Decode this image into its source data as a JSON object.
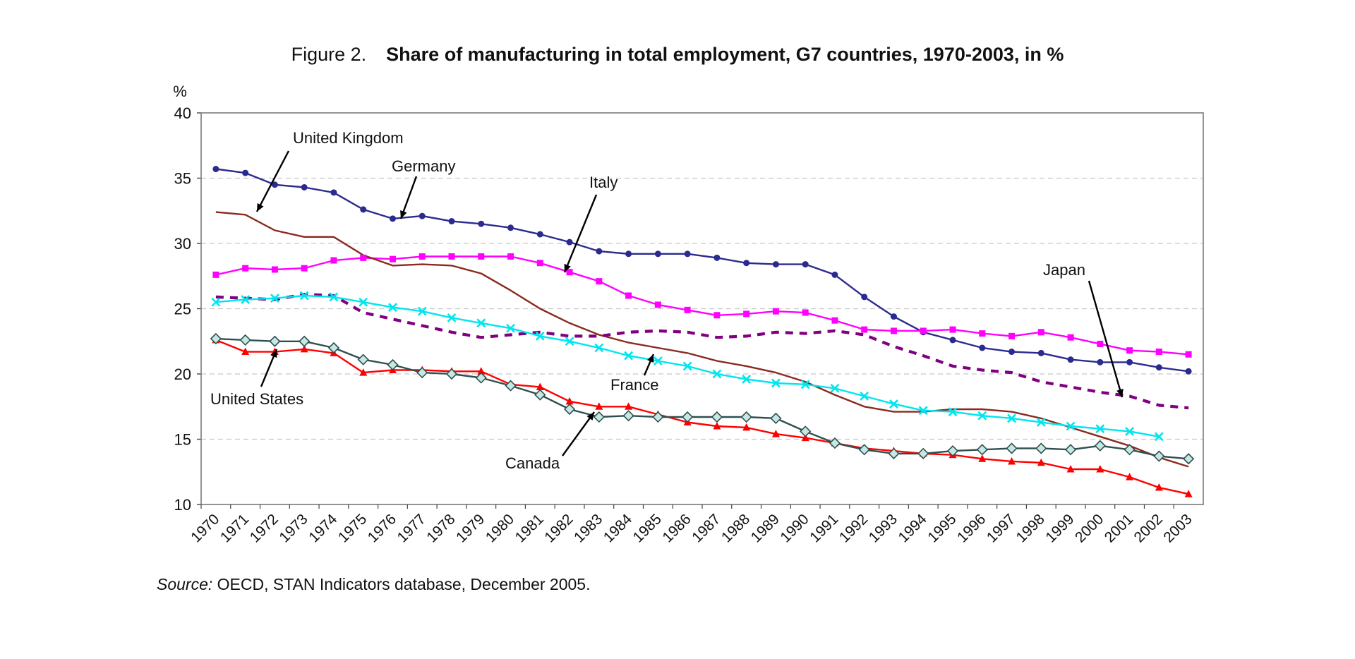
{
  "figure_label": "Figure 2.",
  "source": {
    "lead": "Source:",
    "text": "OECD, STAN Indicators database, December 2005."
  },
  "chart_data": {
    "type": "line",
    "title": "Share of manufacturing in total employment, G7 countries, 1970-2003, in %",
    "ylabel": "%",
    "xlabel": "",
    "ylim": [
      10,
      40
    ],
    "yticks": [
      10,
      15,
      20,
      25,
      30,
      35,
      40
    ],
    "grid": "horizontal dashed",
    "legend": "inline labels with arrows",
    "x": [
      "1970",
      "1971",
      "1972",
      "1973",
      "1974",
      "1975",
      "1976",
      "1977",
      "1978",
      "1979",
      "1980",
      "1981",
      "1982",
      "1983",
      "1984",
      "1985",
      "1986",
      "1987",
      "1988",
      "1989",
      "1990",
      "1991",
      "1992",
      "1993",
      "1994",
      "1995",
      "1996",
      "1997",
      "1998",
      "1999",
      "2000",
      "2001",
      "2002",
      "2003"
    ],
    "series": [
      {
        "name": "Germany",
        "color": "#2b2b8f",
        "marker": "dot",
        "dash": "solid",
        "values": [
          35.7,
          35.4,
          34.5,
          34.3,
          33.9,
          32.6,
          31.9,
          32.1,
          31.7,
          31.5,
          31.2,
          30.7,
          30.1,
          29.4,
          29.2,
          29.2,
          29.2,
          28.9,
          28.5,
          28.4,
          28.4,
          27.6,
          25.9,
          24.4,
          23.2,
          22.6,
          22.0,
          21.7,
          21.6,
          21.1,
          20.9,
          20.9,
          20.5,
          20.2
        ]
      },
      {
        "name": "Italy",
        "color": "#ff00ff",
        "marker": "square",
        "dash": "solid",
        "values": [
          27.6,
          28.1,
          28.0,
          28.1,
          28.7,
          28.9,
          28.8,
          29.0,
          29.0,
          29.0,
          29.0,
          28.5,
          27.8,
          27.1,
          26.0,
          25.3,
          24.9,
          24.5,
          24.6,
          24.8,
          24.7,
          24.1,
          23.4,
          23.3,
          23.3,
          23.4,
          23.1,
          22.9,
          23.2,
          22.8,
          22.3,
          21.8,
          21.7,
          21.5
        ]
      },
      {
        "name": "United Kingdom",
        "color": "#8b2a1e",
        "marker": "none",
        "dash": "solid",
        "values": [
          32.4,
          32.2,
          31.0,
          30.5,
          30.5,
          29.1,
          28.3,
          28.4,
          28.3,
          27.7,
          26.4,
          25.0,
          23.9,
          23.0,
          22.4,
          22.0,
          21.6,
          21.0,
          20.6,
          20.1,
          19.4,
          18.4,
          17.5,
          17.1,
          17.1,
          17.3,
          17.3,
          17.1,
          16.6,
          15.9,
          15.2,
          14.5,
          13.6,
          12.9
        ]
      },
      {
        "name": "Japan",
        "color": "#800080",
        "marker": "none",
        "dash": "dashed",
        "values": [
          25.9,
          25.8,
          25.7,
          26.1,
          26.0,
          24.7,
          24.2,
          23.7,
          23.2,
          22.8,
          23.0,
          23.2,
          22.9,
          22.9,
          23.2,
          23.3,
          23.2,
          22.8,
          22.9,
          23.2,
          23.1,
          23.3,
          23.0,
          22.1,
          21.4,
          20.6,
          20.3,
          20.1,
          19.4,
          19.0,
          18.6,
          18.3,
          17.6,
          17.4
        ]
      },
      {
        "name": "France",
        "color": "#00e5ee",
        "marker": "x",
        "dash": "solid",
        "values": [
          25.5,
          25.7,
          25.8,
          26.0,
          25.9,
          25.5,
          25.1,
          24.8,
          24.3,
          23.9,
          23.5,
          22.9,
          22.5,
          22.0,
          21.4,
          21.0,
          20.6,
          20.0,
          19.6,
          19.3,
          19.2,
          18.9,
          18.3,
          17.7,
          17.2,
          17.1,
          16.8,
          16.6,
          16.3,
          16.0,
          15.8,
          15.6,
          15.2,
          null
        ]
      },
      {
        "name": "United States",
        "color": "#ff0000",
        "marker": "triangle",
        "dash": "solid",
        "values": [
          22.6,
          21.7,
          21.7,
          21.9,
          21.6,
          20.1,
          20.3,
          20.3,
          20.2,
          20.2,
          19.2,
          19.0,
          17.9,
          17.5,
          17.5,
          16.9,
          16.3,
          16.0,
          15.9,
          15.4,
          15.1,
          14.7,
          14.3,
          14.1,
          13.9,
          13.8,
          13.5,
          13.3,
          13.2,
          12.7,
          12.7,
          12.1,
          11.3,
          10.8
        ]
      },
      {
        "name": "Canada",
        "color": "#2f4f4f",
        "marker": "diamond",
        "dash": "solid",
        "values": [
          22.7,
          22.6,
          22.5,
          22.5,
          22.0,
          21.1,
          20.7,
          20.1,
          20.0,
          19.7,
          19.1,
          18.4,
          17.3,
          16.7,
          16.8,
          16.7,
          16.7,
          16.7,
          16.7,
          16.6,
          15.6,
          14.7,
          14.2,
          13.9,
          13.9,
          14.1,
          14.2,
          14.3,
          14.3,
          14.2,
          14.5,
          14.2,
          13.7,
          13.5
        ]
      }
    ]
  }
}
